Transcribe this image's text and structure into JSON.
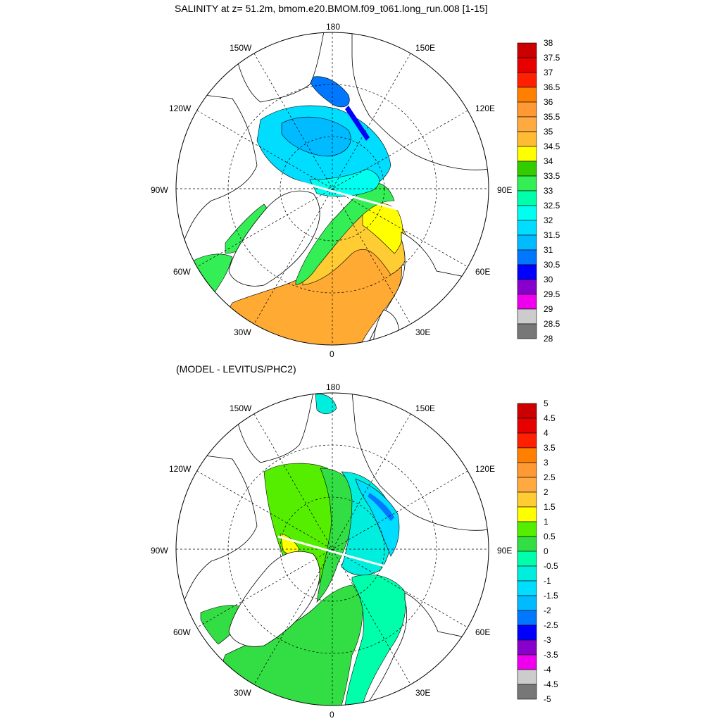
{
  "panels": [
    {
      "id": "salinity",
      "title": "SALINITY at z=  51.2m, bmom.e20.BMOM.f09_t061.long_run.008 [1-15]",
      "lon_labels": [
        "180",
        "150E",
        "120E",
        "90E",
        "60E",
        "30E",
        "0",
        "30W",
        "60W",
        "90W",
        "120W",
        "150W"
      ],
      "colorbar": {
        "labels": [
          "38",
          "37.5",
          "37",
          "36.5",
          "36",
          "35.5",
          "35",
          "34.5",
          "34",
          "33.5",
          "33",
          "32.5",
          "32",
          "31.5",
          "31",
          "30.5",
          "30",
          "29.5",
          "29",
          "28.5",
          "28"
        ],
        "colors": [
          "#cc0000",
          "#e60000",
          "#ff2000",
          "#ff8000",
          "#ff9933",
          "#ffaa40",
          "#ffbb33",
          "#ffff00",
          "#33cc00",
          "#33ee55",
          "#00ffaa",
          "#00ffee",
          "#00ddff",
          "#00bbff",
          "#0077ff",
          "#0000ff",
          "#8800cc",
          "#ee00ee",
          "#cccccc",
          "#777777"
        ]
      }
    },
    {
      "id": "difference",
      "title": "(MODEL - LEVITUS/PHC2)",
      "lon_labels": [
        "180",
        "150E",
        "120E",
        "90E",
        "60E",
        "30E",
        "0",
        "30W",
        "60W",
        "90W",
        "120W",
        "150W"
      ],
      "colorbar": {
        "labels": [
          "5",
          "4.5",
          "4",
          "3.5",
          "3",
          "2.5",
          "2",
          "1.5",
          "1",
          "0.5",
          "0",
          "-0.5",
          "-1",
          "-1.5",
          "-2",
          "-2.5",
          "-3",
          "-3.5",
          "-4",
          "-4.5",
          "-5"
        ],
        "colors": [
          "#cc0000",
          "#e60000",
          "#ff2000",
          "#ff8000",
          "#ff9933",
          "#ffaa40",
          "#ffcc33",
          "#ffff00",
          "#55ee00",
          "#33dd44",
          "#00ffaa",
          "#00eedd",
          "#00ddff",
          "#00bbff",
          "#0077ff",
          "#0000ff",
          "#8800cc",
          "#ee00ee",
          "#cccccc",
          "#777777"
        ]
      }
    }
  ]
}
